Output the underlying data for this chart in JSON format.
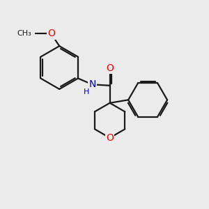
{
  "background_color": "#ebebeb",
  "bond_color": "#1a1a1a",
  "bond_width": 1.6,
  "atom_colors": {
    "O": "#ff0000",
    "N": "#0000cc",
    "C": "#1a1a1a",
    "H": "#1a1a1a"
  },
  "font_size": 10,
  "font_size_small": 8,
  "figsize": [
    3.0,
    3.0
  ],
  "dpi": 100,
  "xlim": [
    0,
    10
  ],
  "ylim": [
    0,
    10
  ]
}
